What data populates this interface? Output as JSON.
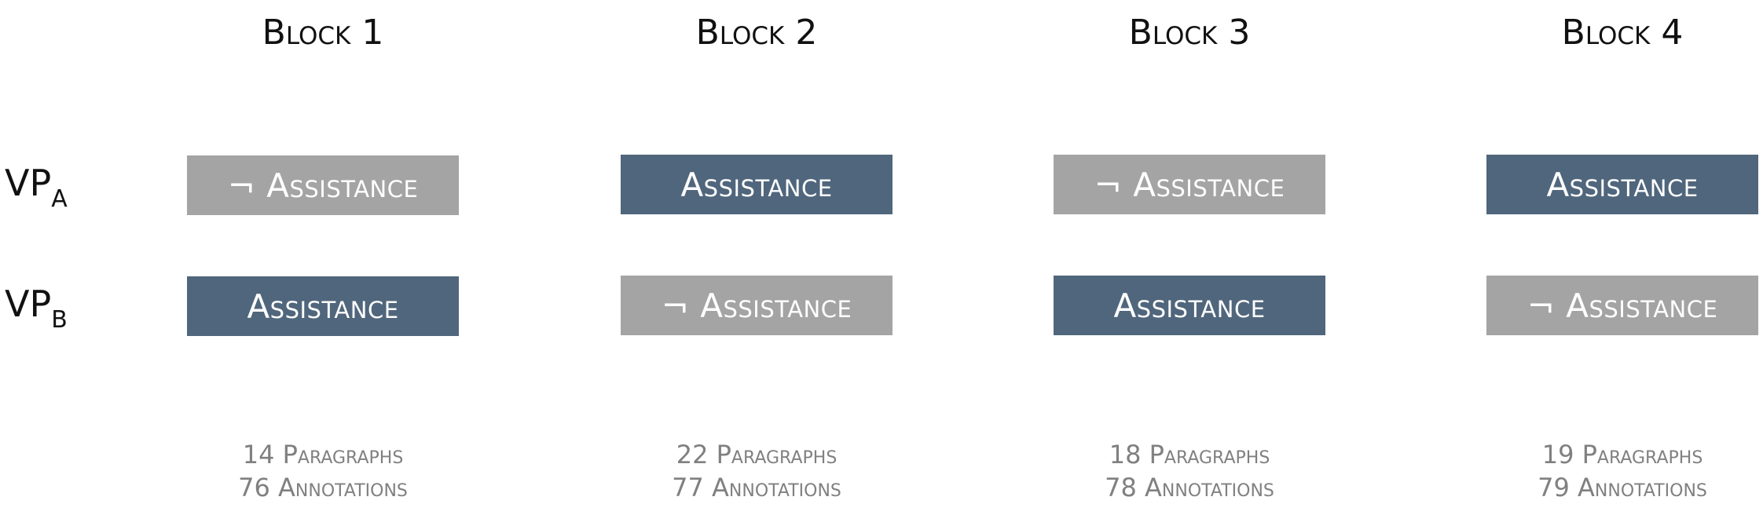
{
  "row_labels": [
    {
      "main": "VP",
      "sub": "A"
    },
    {
      "main": "VP",
      "sub": "B"
    }
  ],
  "blocks": [
    {
      "title": "Block 1",
      "vp_a": {
        "text": "¬ Assistance",
        "state": "off"
      },
      "vp_b": {
        "text": "Assistance",
        "state": "on"
      },
      "paragraphs": "14 Paragraphs",
      "annotations": "76 Annotations"
    },
    {
      "title": "Block 2",
      "vp_a": {
        "text": "Assistance",
        "state": "on"
      },
      "vp_b": {
        "text": "¬ Assistance",
        "state": "off"
      },
      "paragraphs": "22 Paragraphs",
      "annotations": "77 Annotations"
    },
    {
      "title": "Block 3",
      "vp_a": {
        "text": "¬ Assistance",
        "state": "off"
      },
      "vp_b": {
        "text": "Assistance",
        "state": "on"
      },
      "paragraphs": "18 Paragraphs",
      "annotations": "78 Annotations"
    },
    {
      "title": "Block 4",
      "vp_a": {
        "text": "Assistance",
        "state": "on"
      },
      "vp_b": {
        "text": "¬ Assistance",
        "state": "off"
      },
      "paragraphs": "19 Paragraphs",
      "annotations": "79 Annotations"
    }
  ],
  "colors": {
    "assistance": "#50667c",
    "no_assistance": "#a4a4a4",
    "stats_text": "#808080"
  }
}
